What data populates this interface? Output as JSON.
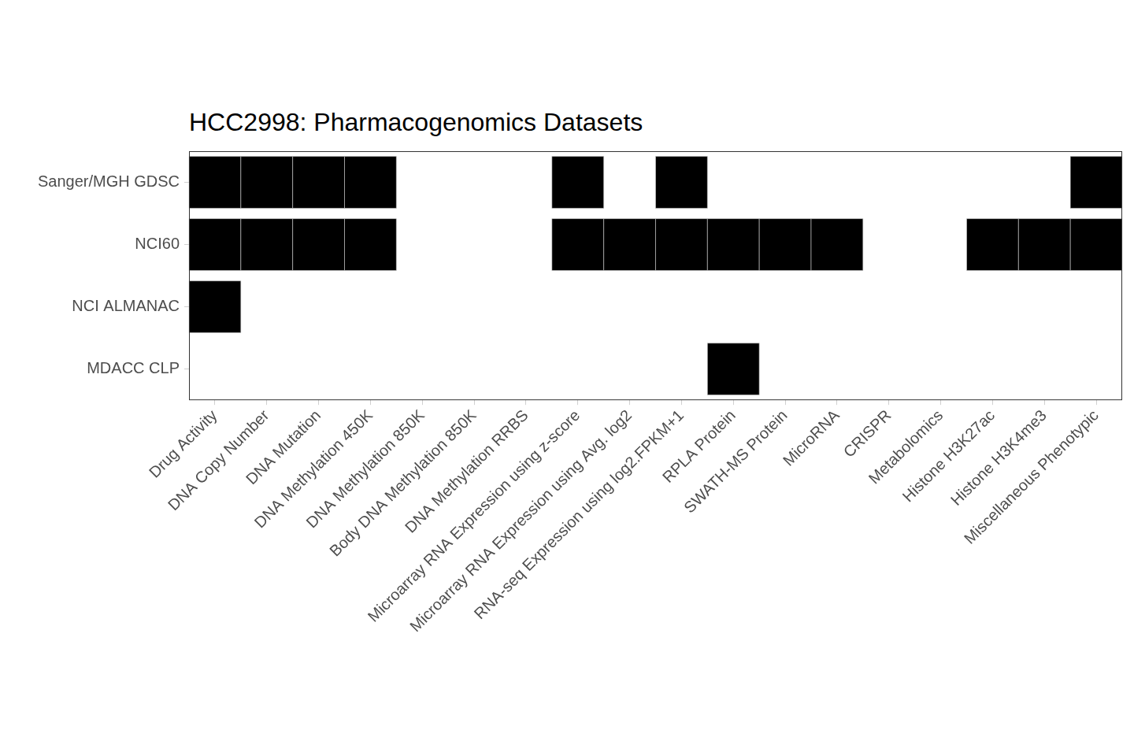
{
  "chart_data": {
    "type": "heatmap",
    "title": "HCC2998: Pharmacogenomics Datasets",
    "categories": [
      "Drug Activity",
      "DNA Copy Number",
      "DNA Mutation",
      "DNA Methylation 450K",
      "DNA Methylation 850K",
      "Body DNA Methylation 850K",
      "DNA Methylation RRBS",
      "Microarray RNA Expression using z-score",
      "Microarray RNA Expression using Avg. log2",
      "RNA-seq Expression using log2.FPKM+1",
      "RPLA Protein",
      "SWATH-MS Protein",
      "MicroRNA",
      "CRISPR",
      "Metabolomics",
      "Histone H3K27ac",
      "Histone H3K4me3",
      "Miscellaneous Phenotypic"
    ],
    "rows": [
      "Sanger/MGH GDSC",
      "NCI60",
      "NCI ALMANAC",
      "MDACC CLP"
    ],
    "cells": [
      [
        1,
        1,
        1,
        1,
        0,
        0,
        0,
        1,
        0,
        1,
        0,
        0,
        0,
        0,
        0,
        0,
        0,
        1
      ],
      [
        1,
        1,
        1,
        1,
        0,
        0,
        0,
        1,
        1,
        1,
        1,
        1,
        1,
        0,
        0,
        1,
        1,
        1
      ],
      [
        1,
        0,
        0,
        0,
        0,
        0,
        0,
        0,
        0,
        0,
        0,
        0,
        0,
        0,
        0,
        0,
        0,
        0
      ],
      [
        0,
        0,
        0,
        0,
        0,
        0,
        0,
        0,
        0,
        0,
        1,
        0,
        0,
        0,
        0,
        0,
        0,
        0
      ]
    ],
    "color": "#000000"
  }
}
